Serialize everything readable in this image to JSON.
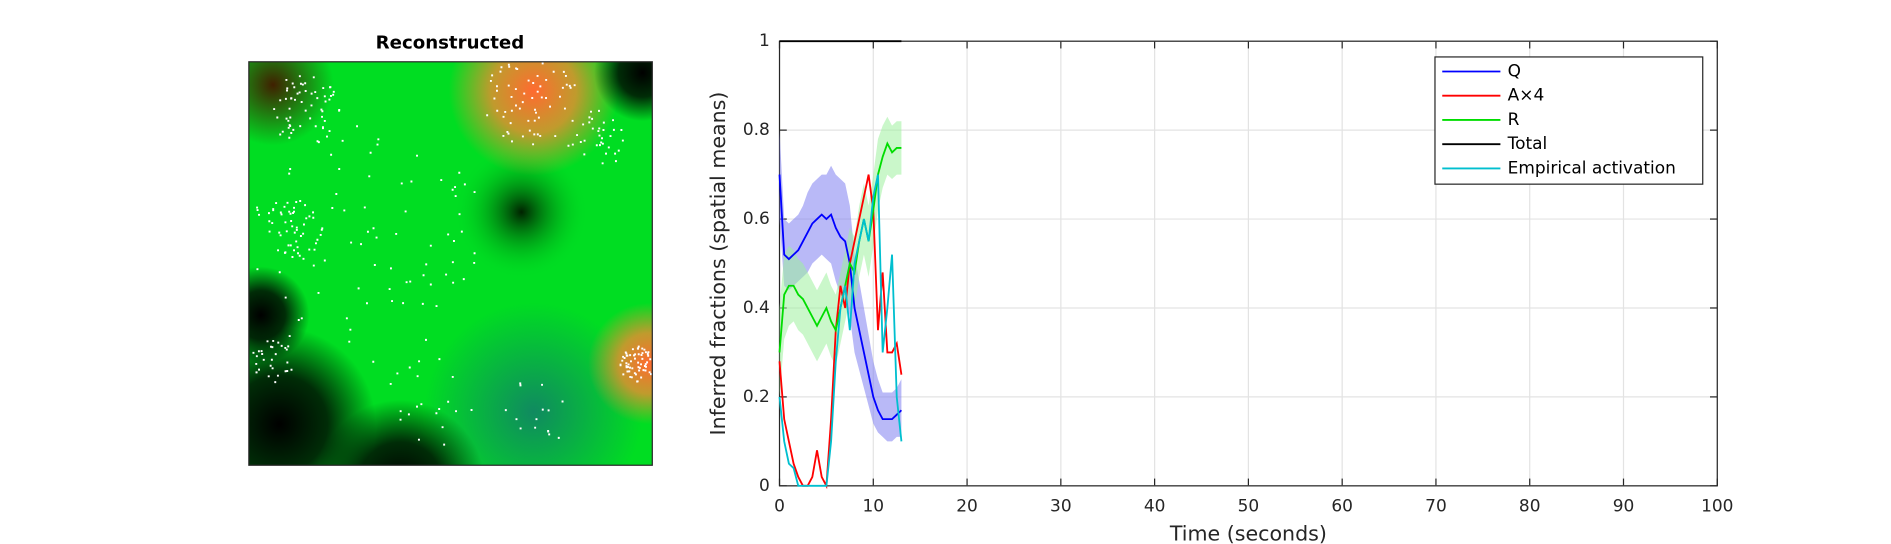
{
  "image_panel": {
    "title": "Reconstructed"
  },
  "chart_data": {
    "type": "line",
    "x_label": "Time (seconds)",
    "y_label": "Inferred fractions (spatial means)",
    "xlim": [
      0,
      100
    ],
    "xticks": [
      0,
      10,
      20,
      30,
      40,
      50,
      60,
      70,
      80,
      90,
      100
    ],
    "ylim": [
      0,
      1
    ],
    "yticks": [
      0,
      0.2,
      0.4,
      0.6,
      0.8,
      1
    ],
    "grid": true,
    "legend": "top-right",
    "x": [
      0,
      0.5,
      1,
      1.5,
      2,
      2.5,
      3,
      3.5,
      4,
      4.5,
      5,
      5.5,
      6,
      6.5,
      7,
      7.5,
      8,
      8.5,
      9,
      9.5,
      10,
      10.5,
      11,
      11.5,
      12,
      12.5,
      13
    ],
    "series": [
      {
        "name": "Q",
        "color": "#0000ff",
        "band_color": "#7f7ff0",
        "values": [
          0.7,
          0.52,
          0.51,
          0.52,
          0.53,
          0.55,
          0.57,
          0.59,
          0.6,
          0.61,
          0.6,
          0.61,
          0.58,
          0.56,
          0.55,
          0.5,
          0.4,
          0.35,
          0.3,
          0.25,
          0.2,
          0.17,
          0.15,
          0.15,
          0.15,
          0.16,
          0.17
        ],
        "lower": [
          0.6,
          0.45,
          0.44,
          0.45,
          0.46,
          0.47,
          0.48,
          0.5,
          0.51,
          0.52,
          0.51,
          0.5,
          0.46,
          0.43,
          0.42,
          0.38,
          0.3,
          0.26,
          0.22,
          0.18,
          0.14,
          0.12,
          0.11,
          0.1,
          0.1,
          0.11,
          0.11
        ],
        "upper": [
          0.8,
          0.6,
          0.59,
          0.6,
          0.61,
          0.63,
          0.66,
          0.68,
          0.69,
          0.7,
          0.7,
          0.72,
          0.7,
          0.69,
          0.68,
          0.63,
          0.52,
          0.46,
          0.4,
          0.34,
          0.28,
          0.24,
          0.21,
          0.21,
          0.21,
          0.22,
          0.24
        ]
      },
      {
        "name": "A×4",
        "color": "#ff0000",
        "values": [
          0.28,
          0.15,
          0.1,
          0.05,
          0.02,
          0,
          0,
          0.02,
          0.08,
          0.02,
          0,
          0.15,
          0.35,
          0.45,
          0.4,
          0.5,
          0.55,
          0.6,
          0.65,
          0.7,
          0.62,
          0.35,
          0.48,
          0.3,
          0.3,
          0.32,
          0.25
        ]
      },
      {
        "name": "R",
        "color": "#00dd00",
        "band_color": "#9ff09f",
        "values": [
          0.3,
          0.43,
          0.45,
          0.45,
          0.43,
          0.42,
          0.4,
          0.38,
          0.36,
          0.38,
          0.4,
          0.37,
          0.35,
          0.4,
          0.45,
          0.5,
          0.48,
          0.55,
          0.6,
          0.55,
          0.62,
          0.7,
          0.74,
          0.77,
          0.75,
          0.76,
          0.76
        ],
        "lower": [
          0.2,
          0.33,
          0.36,
          0.37,
          0.35,
          0.34,
          0.32,
          0.3,
          0.28,
          0.3,
          0.32,
          0.29,
          0.27,
          0.32,
          0.37,
          0.42,
          0.4,
          0.47,
          0.52,
          0.47,
          0.54,
          0.62,
          0.67,
          0.7,
          0.69,
          0.7,
          0.7
        ],
        "upper": [
          0.4,
          0.52,
          0.54,
          0.53,
          0.51,
          0.5,
          0.48,
          0.46,
          0.44,
          0.46,
          0.48,
          0.45,
          0.43,
          0.48,
          0.53,
          0.58,
          0.56,
          0.63,
          0.68,
          0.63,
          0.7,
          0.78,
          0.81,
          0.83,
          0.81,
          0.82,
          0.82
        ]
      },
      {
        "name": "Total",
        "color": "#000000",
        "values": [
          1,
          1,
          1,
          1,
          1,
          1,
          1,
          1,
          1,
          1,
          1,
          1,
          1,
          1,
          1,
          1,
          1,
          1,
          1,
          1,
          1,
          1,
          1,
          1,
          1,
          1,
          1
        ]
      },
      {
        "name": "Empirical activation",
        "color": "#00bfcf",
        "values": [
          0.2,
          0.1,
          0.05,
          0.04,
          0,
          0,
          0,
          0,
          0,
          0,
          0,
          0.1,
          0.28,
          0.4,
          0.45,
          0.35,
          0.5,
          0.55,
          0.6,
          0.55,
          0.65,
          0.7,
          0.3,
          0.4,
          0.52,
          0.2,
          0.1
        ]
      }
    ]
  }
}
